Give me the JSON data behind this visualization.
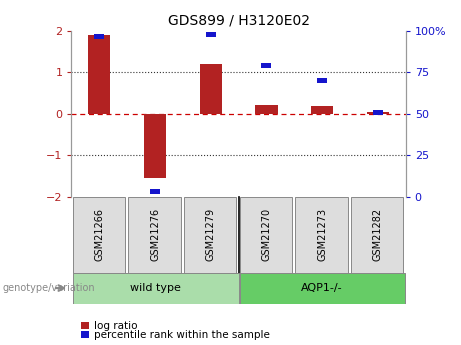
{
  "title": "GDS899 / H3120E02",
  "samples": [
    "GSM21266",
    "GSM21276",
    "GSM21279",
    "GSM21270",
    "GSM21273",
    "GSM21282"
  ],
  "log_ratios": [
    1.9,
    -1.55,
    1.2,
    0.22,
    0.2,
    0.05
  ],
  "percentile_ranks": [
    97,
    3,
    98,
    79,
    70,
    51
  ],
  "bar_color_red": "#b22222",
  "bar_color_blue": "#1515cc",
  "ylim_left": [
    -2,
    2
  ],
  "ylim_right": [
    0,
    100
  ],
  "yticks_left": [
    -2,
    -1,
    0,
    1,
    2
  ],
  "yticks_right": [
    0,
    25,
    50,
    75,
    100
  ],
  "ytick_labels_right": [
    "0",
    "25",
    "50",
    "75",
    "100%"
  ],
  "hline_color_red": "#cc0000",
  "dotline_color": "#333333",
  "sample_box_color": "#dddddd",
  "sample_box_edge": "#888888",
  "wt_color": "#aaddaa",
  "aqp_color": "#66cc66",
  "genotype_label": "genotype/variation",
  "legend_log_ratio": "log ratio",
  "legend_percentile": "percentile rank within the sample",
  "bar_width": 0.4,
  "n_wt": 3,
  "n_aqp": 3
}
